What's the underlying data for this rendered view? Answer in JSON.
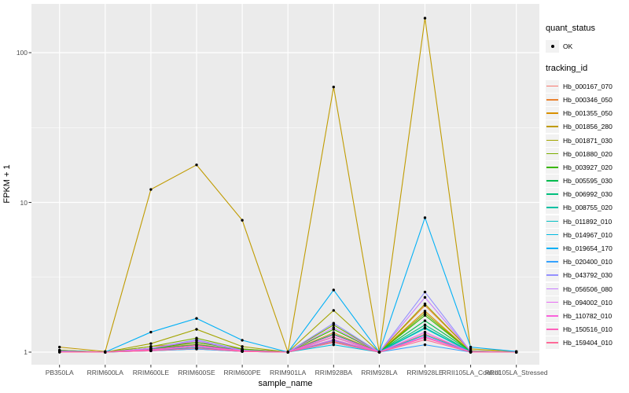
{
  "chart_data": {
    "type": "line",
    "title": "",
    "xlabel": "sample_name",
    "ylabel": "FPKM + 1",
    "yscale": "log10",
    "yticks": [
      1,
      10,
      100
    ],
    "yminor": [
      3.162,
      31.62
    ],
    "ylim": [
      0.85,
      210
    ],
    "grid": "on",
    "legend_position": "right",
    "categories": [
      "PB350LA",
      "RRIM600LA",
      "RRIM600LE",
      "RRIM600SE",
      "RRIM600PE",
      "RRIM901LA",
      "RRIM928BA",
      "RRIM928LA",
      "RRIM928LE",
      "RRII105LA_Control",
      "RRII105LA_Stressed"
    ],
    "quant_legend": {
      "title": "quant_status",
      "items": [
        {
          "label": "OK",
          "marker": "black-point"
        }
      ]
    },
    "series_legend_title": "tracking_id",
    "series": [
      {
        "name": "Hb_000167_070",
        "color": "#F8766D",
        "values": [
          1.02,
          1.0,
          1.03,
          1.06,
          1.02,
          1.0,
          1.18,
          1.0,
          1.32,
          1.01,
          1.0
        ]
      },
      {
        "name": "Hb_000346_050",
        "color": "#EA8331",
        "values": [
          1.03,
          1.0,
          1.06,
          1.13,
          1.03,
          1.0,
          1.35,
          1.0,
          2.05,
          1.02,
          1.0
        ]
      },
      {
        "name": "Hb_001355_050",
        "color": "#D89000",
        "values": [
          1.03,
          1.0,
          1.09,
          1.16,
          1.05,
          1.0,
          1.3,
          1.0,
          1.88,
          1.01,
          1.0
        ]
      },
      {
        "name": "Hb_001856_280",
        "color": "#C09B00",
        "values": [
          1.08,
          1.01,
          12.2,
          17.8,
          7.6,
          1.0,
          59.0,
          1.0,
          170.0,
          1.05,
          1.01
        ]
      },
      {
        "name": "Hb_001871_030",
        "color": "#A3A500",
        "values": [
          1.03,
          1.0,
          1.14,
          1.42,
          1.09,
          1.0,
          1.9,
          1.0,
          2.1,
          1.02,
          1.0
        ]
      },
      {
        "name": "Hb_001880_020",
        "color": "#7CAE00",
        "values": [
          1.02,
          1.0,
          1.09,
          1.24,
          1.05,
          1.0,
          1.52,
          1.0,
          1.82,
          1.01,
          1.0
        ]
      },
      {
        "name": "Hb_003927_020",
        "color": "#39B600",
        "values": [
          1.02,
          1.0,
          1.06,
          1.16,
          1.04,
          1.0,
          1.42,
          1.0,
          1.76,
          1.01,
          1.0
        ]
      },
      {
        "name": "Hb_005595_030",
        "color": "#00BB4E",
        "values": [
          1.01,
          1.0,
          1.05,
          1.12,
          1.03,
          1.0,
          1.32,
          1.0,
          1.62,
          1.01,
          1.0
        ]
      },
      {
        "name": "Hb_006992_030",
        "color": "#00BF7D",
        "values": [
          1.01,
          1.0,
          1.04,
          1.09,
          1.02,
          1.0,
          1.26,
          1.0,
          1.52,
          1.0,
          1.0
        ]
      },
      {
        "name": "Hb_008755_020",
        "color": "#00C1A3",
        "values": [
          1.01,
          1.0,
          1.03,
          1.07,
          1.02,
          1.0,
          1.21,
          1.0,
          1.46,
          1.0,
          1.0
        ]
      },
      {
        "name": "Hb_011892_010",
        "color": "#00BFC4",
        "values": [
          1.01,
          1.0,
          1.03,
          1.06,
          1.01,
          1.0,
          1.16,
          1.0,
          1.44,
          1.0,
          1.0
        ]
      },
      {
        "name": "Hb_014967_010",
        "color": "#00BAE0",
        "values": [
          1.01,
          1.0,
          1.02,
          1.05,
          1.01,
          1.0,
          1.12,
          1.0,
          1.3,
          1.0,
          1.0
        ]
      },
      {
        "name": "Hb_019654_170",
        "color": "#00B0F6",
        "values": [
          1.02,
          1.0,
          1.36,
          1.68,
          1.2,
          1.0,
          2.6,
          1.0,
          7.9,
          1.08,
          1.01
        ]
      },
      {
        "name": "Hb_020400_010",
        "color": "#35A2FF",
        "values": [
          1.01,
          1.0,
          1.02,
          1.05,
          1.01,
          1.0,
          1.2,
          1.0,
          1.12,
          1.0,
          1.0
        ]
      },
      {
        "name": "Hb_043792_030",
        "color": "#9590FF",
        "values": [
          1.01,
          1.0,
          1.06,
          1.21,
          1.03,
          1.0,
          1.56,
          1.0,
          2.52,
          1.01,
          1.0
        ]
      },
      {
        "name": "Hb_056506_080",
        "color": "#C77CFF",
        "values": [
          1.01,
          1.0,
          1.06,
          1.19,
          1.02,
          1.0,
          1.46,
          1.0,
          2.32,
          1.01,
          1.0
        ]
      },
      {
        "name": "Hb_094002_010",
        "color": "#E76BF3",
        "values": [
          1.01,
          1.0,
          1.04,
          1.11,
          1.01,
          1.0,
          1.3,
          1.0,
          1.36,
          1.0,
          1.0
        ]
      },
      {
        "name": "Hb_110782_010",
        "color": "#FA62DB",
        "values": [
          1.0,
          1.0,
          1.03,
          1.09,
          1.01,
          1.0,
          1.21,
          1.0,
          1.27,
          1.0,
          1.0
        ]
      },
      {
        "name": "Hb_150516_010",
        "color": "#FF62BC",
        "values": [
          1.01,
          1.0,
          1.04,
          1.11,
          1.02,
          1.0,
          1.26,
          1.0,
          1.25,
          1.0,
          1.0
        ]
      },
      {
        "name": "Hb_159404_010",
        "color": "#FF6A98",
        "values": [
          1.0,
          1.0,
          1.02,
          1.06,
          1.01,
          1.0,
          1.16,
          1.0,
          1.21,
          1.0,
          1.0
        ]
      }
    ],
    "colors": {
      "panel_bg": "#EBEBEB",
      "grid": "#FFFFFF",
      "tick": "#333333",
      "axis_text": "#4D4D4D",
      "title_text": "#000000",
      "legend_key_bg": "#F2F2F2",
      "point": "#000000"
    }
  }
}
